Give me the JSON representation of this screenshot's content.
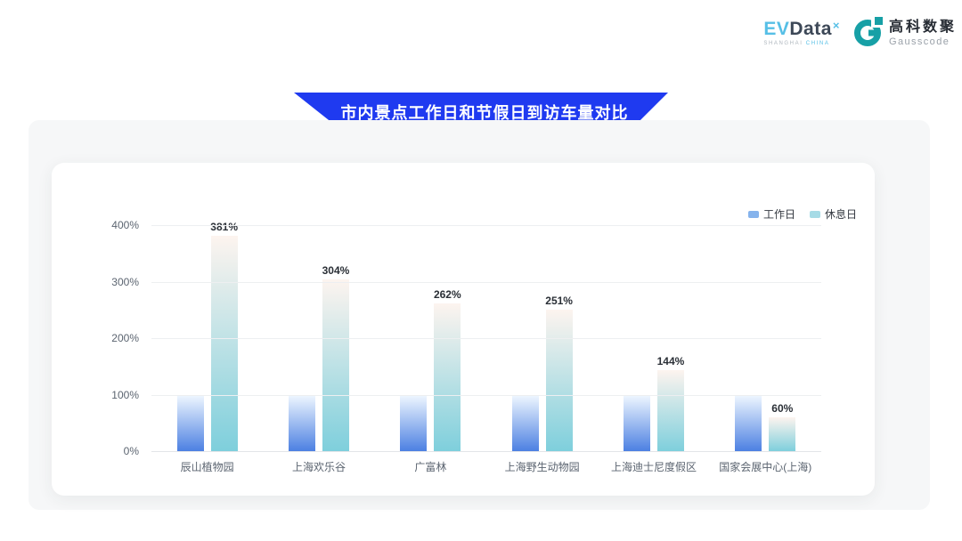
{
  "header": {
    "evdata": {
      "ev": "EV",
      "data": "Data",
      "sup": "×",
      "sub_left": "SHANGHAI",
      "sub_right": "CHINA"
    },
    "gausscode": {
      "cn": "高科数聚",
      "en": "Gausscode",
      "icon_color": "#17a0a6"
    }
  },
  "banner": {
    "title": "市内景点工作日和节假日到访车量对比",
    "bg_color": "#1f3af0"
  },
  "chart_data": {
    "type": "bar",
    "title": "市内景点工作日和节假日到访车量对比",
    "categories": [
      "辰山植物园",
      "上海欢乐谷",
      "广富林",
      "上海野生动物园",
      "上海迪士尼度假区",
      "国家会展中心(上海)"
    ],
    "series": [
      {
        "key": "workday",
        "name": "工作日",
        "values": [
          100,
          100,
          100,
          100,
          100,
          100
        ],
        "show_value_labels": false,
        "bar_gradient_top": "#eff7ff",
        "bar_gradient_bottom": "#4c80e2",
        "legend_color": "#85b3ec"
      },
      {
        "key": "restday",
        "name": "休息日",
        "values": [
          381,
          304,
          262,
          251,
          144,
          60
        ],
        "show_value_labels": true,
        "bar_gradient_top": "#fdf4ef",
        "bar_gradient_bottom": "#7ecfdc",
        "legend_color": "#a6dbe6"
      }
    ],
    "value_suffix": "%",
    "y_ticks": [
      "400%",
      "300%",
      "200%",
      "100%",
      "0%"
    ],
    "ylim": [
      0,
      400
    ],
    "xlabel": "",
    "ylabel": "",
    "grid": true,
    "legend_position": "top-right",
    "legend_labels": [
      "工作日",
      "休息日"
    ]
  }
}
